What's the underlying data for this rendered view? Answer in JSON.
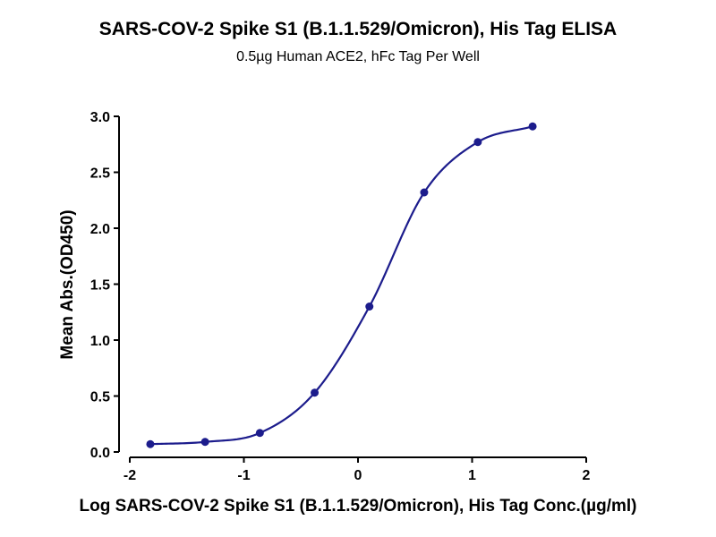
{
  "chart_data": {
    "type": "scatter",
    "title": "SARS-COV-2 Spike S1 (B.1.1.529/Omicron), His Tag ELISA",
    "subtitle": "0.5µg Human ACE2, hFc Tag Per Well",
    "xlabel": "Log SARS-COV-2 Spike S1 (B.1.1.529/Omicron), His Tag Conc.(µg/ml)",
    "ylabel": "Mean Abs.(OD450)",
    "xlim": [
      -2,
      2
    ],
    "ylim": [
      0,
      3.0
    ],
    "xticks": [
      "-2",
      "-1",
      "0",
      "1",
      "2"
    ],
    "yticks": [
      "0.0",
      "0.5",
      "1.0",
      "1.5",
      "2.0",
      "2.5",
      "3.0"
    ],
    "grid": false,
    "series": [
      {
        "x": [
          -1.82,
          -1.34,
          -0.86,
          -0.38,
          0.1,
          0.58,
          1.05,
          1.53
        ],
        "y": [
          0.07,
          0.09,
          0.17,
          0.53,
          1.3,
          2.32,
          2.77,
          2.91
        ],
        "fit_curve": "four-parameter logistic",
        "color": "#1c1c8c"
      }
    ]
  }
}
